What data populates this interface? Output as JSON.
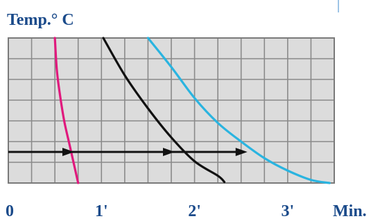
{
  "chart_data": {
    "type": "line",
    "ylabel": "Temp.° C",
    "xlabel": "Min.",
    "x_ticks": [
      {
        "value": 0,
        "label": "0"
      },
      {
        "value": 1,
        "label": "1'"
      },
      {
        "value": 2,
        "label": "2'"
      },
      {
        "value": 3,
        "label": "3'"
      }
    ],
    "xlim": [
      0,
      3.5
    ],
    "ylim": [
      0,
      7
    ],
    "grid": true,
    "grid_step_x": 0.25,
    "grid_step_y": 1,
    "series": [
      {
        "color": "#e0197d",
        "points": [
          [
            0.5,
            7
          ],
          [
            0.52,
            5.5
          ],
          [
            0.55,
            4.4
          ],
          [
            0.6,
            3.0
          ],
          [
            0.66,
            1.8
          ],
          [
            0.75,
            0
          ]
        ]
      },
      {
        "color": "#111111",
        "points": [
          [
            1.02,
            7
          ],
          [
            1.25,
            5.2
          ],
          [
            1.5,
            3.6
          ],
          [
            1.75,
            2.2
          ],
          [
            2.0,
            1.05
          ],
          [
            2.25,
            0.35
          ],
          [
            2.32,
            0.05
          ]
        ]
      },
      {
        "color": "#2ab4e0",
        "points": [
          [
            1.5,
            7
          ],
          [
            1.75,
            5.6
          ],
          [
            2.0,
            4.1
          ],
          [
            2.25,
            2.9
          ],
          [
            2.5,
            2.0
          ],
          [
            2.75,
            1.2
          ],
          [
            3.0,
            0.6
          ],
          [
            3.25,
            0.15
          ],
          [
            3.45,
            0.0
          ]
        ]
      }
    ],
    "reference_line": {
      "color": "#111111",
      "y": 1.5,
      "x_start": 0,
      "x_end": 2.5,
      "arrow_x": [
        0.67,
        1.75,
        2.53
      ]
    }
  }
}
